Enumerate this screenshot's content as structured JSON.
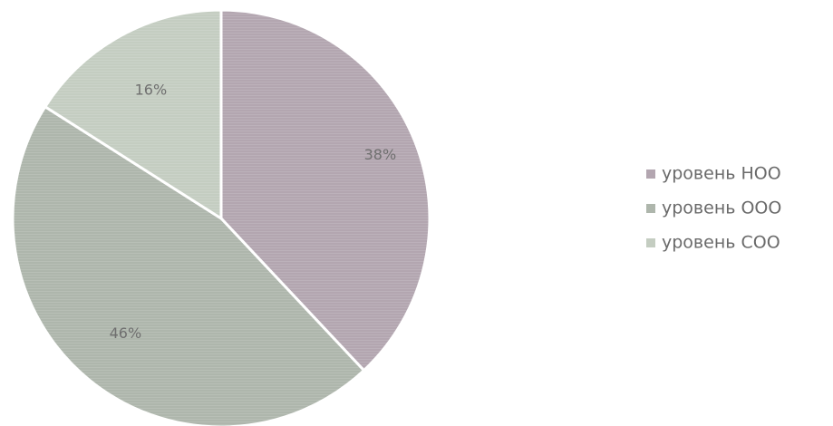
{
  "chart_data": {
    "type": "pie",
    "title": "",
    "categories": [
      "уровень НОО",
      "уровень ООО",
      "уровень СОО"
    ],
    "values": [
      38,
      46,
      16
    ],
    "data_labels": [
      "38%",
      "46%",
      "16%"
    ],
    "colors": [
      "#b3a6b0",
      "#aeb6ac",
      "#c4cdc1"
    ],
    "legend": {
      "position": "right",
      "entries": [
        "уровень НОО",
        "уровень ООО",
        "уровень СОО"
      ]
    }
  }
}
